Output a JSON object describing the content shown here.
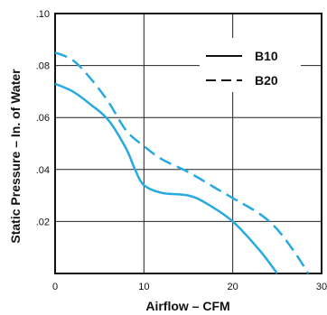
{
  "chart_data": {
    "type": "line",
    "title": "",
    "xlabel": "Airflow – CFM",
    "ylabel": "Static Pressure – In. of Water",
    "xlim": [
      0,
      30
    ],
    "ylim": [
      0,
      0.1
    ],
    "x_ticks": [
      0,
      10,
      20,
      30
    ],
    "x_tick_labels": [
      "0",
      "10",
      "20",
      "30"
    ],
    "y_ticks": [
      0.02,
      0.04,
      0.06,
      0.08,
      0.1
    ],
    "y_tick_labels": [
      ".02",
      ".04",
      ".06",
      ".08",
      ".10"
    ],
    "grid": true,
    "legend_position": "top-right",
    "line_color": "#27a9e1",
    "series": [
      {
        "name": "B10",
        "style": "solid",
        "points": [
          [
            0,
            0.073
          ],
          [
            2,
            0.07
          ],
          [
            4,
            0.065
          ],
          [
            6,
            0.059
          ],
          [
            8,
            0.048
          ],
          [
            9,
            0.04
          ],
          [
            10,
            0.034
          ],
          [
            12,
            0.031
          ],
          [
            15,
            0.03
          ],
          [
            17,
            0.027
          ],
          [
            20,
            0.02
          ],
          [
            23,
            0.009
          ],
          [
            25,
            0.0
          ]
        ]
      },
      {
        "name": "B20",
        "style": "dashed",
        "points": [
          [
            0,
            0.085
          ],
          [
            2,
            0.082
          ],
          [
            4,
            0.075
          ],
          [
            6,
            0.066
          ],
          [
            8,
            0.055
          ],
          [
            10,
            0.049
          ],
          [
            12,
            0.044
          ],
          [
            15,
            0.039
          ],
          [
            18,
            0.033
          ],
          [
            20,
            0.029
          ],
          [
            23,
            0.023
          ],
          [
            25,
            0.017
          ],
          [
            27,
            0.008
          ],
          [
            28.5,
            0.0
          ]
        ]
      }
    ]
  }
}
